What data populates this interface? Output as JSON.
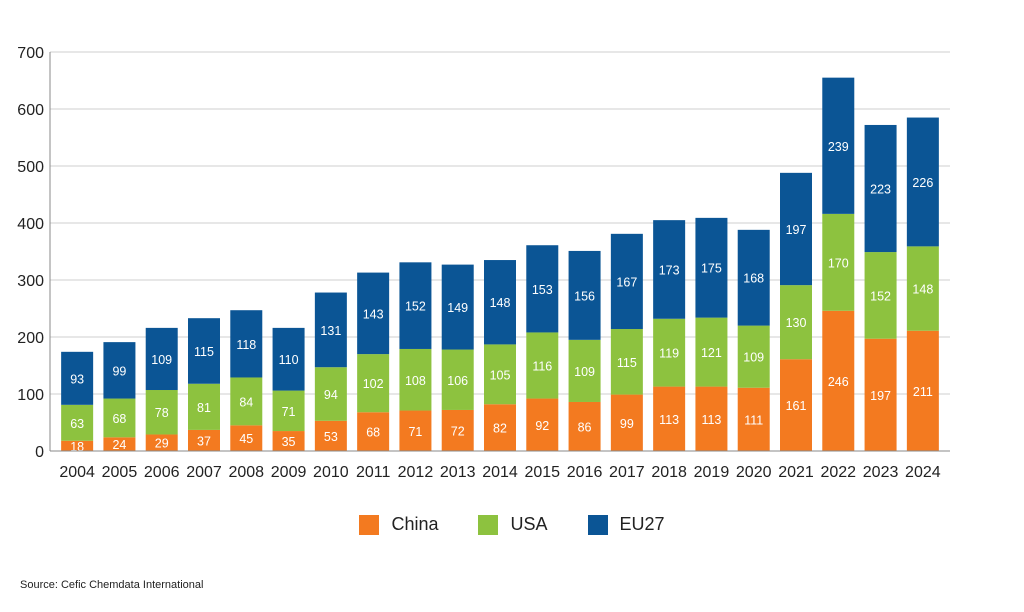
{
  "chart_data": {
    "type": "bar",
    "stacked": true,
    "categories": [
      "2004",
      "2005",
      "2006",
      "2007",
      "2008",
      "2009",
      "2010",
      "2011",
      "2012",
      "2013",
      "2014",
      "2015",
      "2016",
      "2017",
      "2018",
      "2019",
      "2020",
      "2021",
      "2022",
      "2023",
      "2024"
    ],
    "series": [
      {
        "name": "China",
        "color": "#f37a20",
        "values": [
          18,
          24,
          29,
          37,
          45,
          35,
          53,
          68,
          71,
          72,
          82,
          92,
          86,
          99,
          113,
          113,
          111,
          161,
          246,
          197,
          211
        ]
      },
      {
        "name": "USA",
        "color": "#8dc23f",
        "values": [
          63,
          68,
          78,
          81,
          84,
          71,
          94,
          102,
          108,
          106,
          105,
          116,
          109,
          115,
          119,
          121,
          109,
          130,
          170,
          152,
          148
        ]
      },
      {
        "name": "EU27",
        "color": "#0b5595",
        "values": [
          93,
          99,
          109,
          115,
          118,
          110,
          131,
          143,
          152,
          149,
          148,
          153,
          156,
          167,
          173,
          175,
          168,
          197,
          239,
          223,
          226
        ]
      }
    ],
    "ylim": [
      0,
      700
    ],
    "yticks": [
      0,
      100,
      200,
      300,
      400,
      500,
      600,
      700
    ],
    "grid": true,
    "legend": "bottom",
    "title": "",
    "xlabel": "",
    "ylabel": ""
  },
  "source": "Source: Cefic Chemdata International"
}
